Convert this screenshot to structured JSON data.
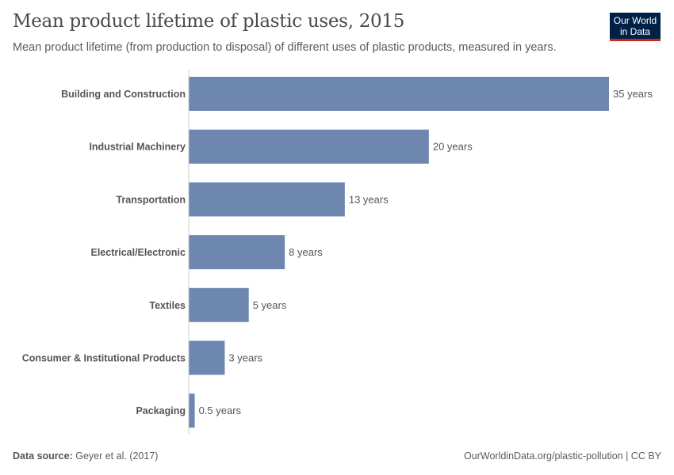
{
  "title": "Mean product lifetime of plastic uses, 2015",
  "subtitle": "Mean product lifetime (from production to disposal) of different uses of plastic products, measured in years.",
  "logo": {
    "text": "Our World in Data",
    "line1": "Our World",
    "line2": "in Data",
    "bg": "#002147",
    "accent": "#ce261e"
  },
  "footer": {
    "source_label": "Data source:",
    "source": "Geyer et al. (2017)",
    "license": "OurWorldinData.org/plastic-pollution | CC BY"
  },
  "chart_data": {
    "type": "bar",
    "orientation": "horizontal",
    "title": "Mean product lifetime of plastic uses, 2015",
    "categories": [
      "Building and Construction",
      "Industrial Machinery",
      "Transportation",
      "Electrical/Electronic",
      "Textiles",
      "Consumer & Institutional Products",
      "Packaging"
    ],
    "values": [
      35,
      20,
      13,
      8,
      5,
      3,
      0.5
    ],
    "value_labels": [
      "35 years",
      "20 years",
      "13 years",
      "8 years",
      "5 years",
      "3 years",
      "0.5 years"
    ],
    "unit": "years",
    "xlim": [
      0,
      35
    ],
    "grid": false,
    "bar_color": "#6d87b0"
  }
}
